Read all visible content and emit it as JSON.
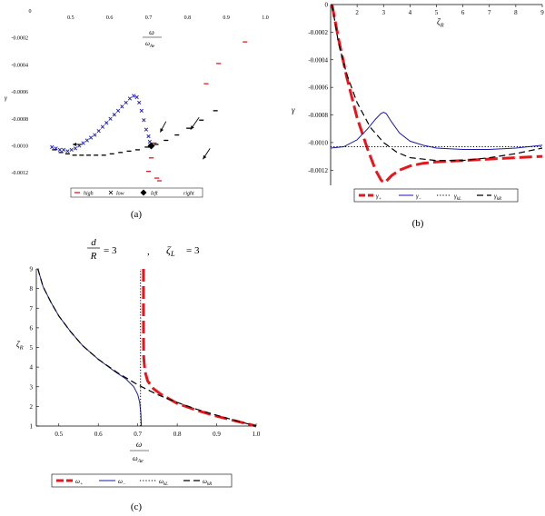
{
  "captions": {
    "a": "(a)",
    "b": "(b)",
    "c": "(c)"
  },
  "colors": {
    "red": "#e8161b",
    "blue": "#1a1aa8",
    "black": "#000000"
  },
  "chart_data": [
    {
      "id": "a",
      "type": "scatter",
      "xlabel_num": "ω",
      "xlabel_den": "ω",
      "xlabel_den_sub": "Ae",
      "ylabel": "γ",
      "x_ticks": [
        "0.5",
        "0.6",
        "0.7",
        "0.8",
        "0.9",
        "1.0"
      ],
      "x_tick_values": [
        0.5,
        0.6,
        0.7,
        0.8,
        0.9,
        1.0
      ],
      "y_ticks": [
        "-0.0002",
        "-0.0004",
        "-0.0006",
        "-0.0008",
        "-0.0010",
        "-0.0012"
      ],
      "y_tick_values": [
        -0.0002,
        -0.0004,
        -0.0006,
        -0.0008,
        -0.001,
        -0.0012
      ],
      "xlim": [
        0.4,
        1.0
      ],
      "ylim": [
        -0.00128,
        0
      ],
      "legend": [
        "high",
        "low",
        "left",
        "right"
      ],
      "series": [
        {
          "name": "high",
          "marker": "dash",
          "color": "#e8161b",
          "x": [
            0.948,
            0.88,
            0.848,
            0.715,
            0.707,
            0.7,
            0.721,
            0.728
          ],
          "y": [
            -0.00023,
            -0.00039,
            -0.00054,
            -0.00098,
            -0.00109,
            -0.00119,
            -0.00124,
            -0.00126
          ]
        },
        {
          "name": "low",
          "marker": "x",
          "color": "#1a1aa8",
          "x": [
            0.452,
            0.462,
            0.472,
            0.482,
            0.492,
            0.502,
            0.512,
            0.522,
            0.532,
            0.542,
            0.552,
            0.562,
            0.572,
            0.582,
            0.592,
            0.602,
            0.612,
            0.622,
            0.632,
            0.642,
            0.652,
            0.662,
            0.67,
            0.676,
            0.682,
            0.688,
            0.694,
            0.7,
            0.703,
            0.705
          ],
          "y": [
            -0.00101,
            -0.00102,
            -0.00103,
            -0.00103,
            -0.00104,
            -0.00103,
            -0.00102,
            -0.001,
            -0.00098,
            -0.00096,
            -0.00094,
            -0.00092,
            -0.00089,
            -0.00086,
            -0.00083,
            -0.0008,
            -0.00077,
            -0.00074,
            -0.00071,
            -0.00068,
            -0.00065,
            -0.00063,
            -0.00064,
            -0.00068,
            -0.00074,
            -0.00081,
            -0.00088,
            -0.00093,
            -0.00097,
            -0.001
          ]
        },
        {
          "name": "left",
          "marker": "diamond",
          "color": "#000000",
          "x": [
            0.707
          ],
          "y": [
            -0.001
          ]
        },
        {
          "name": "right",
          "marker": "dash",
          "color": "#000000",
          "x": [
            0.458,
            0.475,
            0.492,
            0.51,
            0.528,
            0.546,
            0.565,
            0.585,
            0.606,
            0.628,
            0.65,
            0.672,
            0.696,
            0.72,
            0.745,
            0.773,
            0.803,
            0.836,
            0.872
          ],
          "y": [
            -0.00103,
            -0.00105,
            -0.00106,
            -0.00107,
            -0.00107,
            -0.00107,
            -0.00107,
            -0.00107,
            -0.00106,
            -0.00105,
            -0.00104,
            -0.00103,
            -0.00101,
            -0.00099,
            -0.00096,
            -0.00092,
            -0.00087,
            -0.00081,
            -0.00074
          ]
        }
      ]
    },
    {
      "id": "b",
      "type": "line",
      "xlabel": "ζ",
      "xlabel_sub": "R",
      "ylabel": "γ",
      "x_ticks": [
        "1",
        "2",
        "3",
        "4",
        "5",
        "6",
        "7",
        "8",
        "9"
      ],
      "x_tick_values": [
        1,
        2,
        3,
        4,
        5,
        6,
        7,
        8,
        9
      ],
      "y_ticks": [
        "0",
        "-0.0002",
        "-0.0004",
        "-0.0006",
        "-0.0008",
        "-0.0010",
        "-0.0012"
      ],
      "y_tick_values": [
        0,
        -0.0002,
        -0.0004,
        -0.0006,
        -0.0008,
        -0.001,
        -0.0012
      ],
      "xlim": [
        1,
        9
      ],
      "ylim": [
        -0.00131,
        0
      ],
      "legend": [
        {
          "sym": "γ",
          "sub": "+"
        },
        {
          "sym": "γ",
          "sub": "−"
        },
        {
          "sym": "γ",
          "sub": "kL"
        },
        {
          "sym": "γ",
          "sub": "kR"
        }
      ],
      "series": [
        {
          "name": "γ+",
          "style": "longdash",
          "color": "#e8161b",
          "x": [
            1.05,
            1.3,
            1.6,
            2.0,
            2.4,
            2.7,
            2.9,
            3.0,
            3.1,
            3.3,
            3.6,
            4.0,
            4.5,
            5.0,
            6.0,
            7.0,
            8.0,
            9.0
          ],
          "y": [
            0.0,
            -0.00025,
            -0.00052,
            -0.00082,
            -0.00105,
            -0.0012,
            -0.00127,
            -0.00129,
            -0.00128,
            -0.00124,
            -0.0012,
            -0.00117,
            -0.00115,
            -0.00114,
            -0.00113,
            -0.00112,
            -0.00111,
            -0.0011
          ]
        },
        {
          "name": "γ−",
          "style": "solid",
          "color": "#1a1aa8",
          "x": [
            1.0,
            1.5,
            2.0,
            2.4,
            2.7,
            2.9,
            3.0,
            3.1,
            3.3,
            3.6,
            4.0,
            4.5,
            5.0,
            6.0,
            7.0,
            8.0,
            9.0
          ],
          "y": [
            -0.00104,
            -0.00103,
            -0.00098,
            -0.0009,
            -0.00083,
            -0.00079,
            -0.00078,
            -0.00079,
            -0.00085,
            -0.00093,
            -0.00099,
            -0.00102,
            -0.00104,
            -0.00105,
            -0.00105,
            -0.00104,
            -0.00102
          ]
        },
        {
          "name": "γkL",
          "style": "dotted",
          "color": "#000000",
          "x": [
            1.0,
            9.0
          ],
          "y": [
            -0.00103,
            -0.00103
          ]
        },
        {
          "name": "γkR",
          "style": "dashed",
          "color": "#000000",
          "x": [
            1.05,
            1.3,
            1.6,
            2.0,
            2.5,
            3.0,
            3.5,
            4.0,
            5.0,
            6.0,
            7.0,
            8.0,
            9.0
          ],
          "y": [
            0.0,
            -0.00028,
            -0.0005,
            -0.00071,
            -0.00089,
            -0.001,
            -0.00107,
            -0.00111,
            -0.00113,
            -0.00113,
            -0.00111,
            -0.00108,
            -0.00104
          ]
        }
      ]
    },
    {
      "id": "c",
      "type": "line",
      "title": {
        "num": "d",
        "den": "R",
        "eq1": "= 3",
        "comma": ",",
        "zeta": "ζ",
        "zeta_sub": "L",
        "eq2": "= 3"
      },
      "xlabel_num": "ω",
      "xlabel_den": "ω",
      "xlabel_den_sub": "Ae",
      "ylabel": "ζ",
      "ylabel_sub": "R",
      "x_ticks": [
        "0.5",
        "0.6",
        "0.7",
        "0.8",
        "0.9",
        "1.0"
      ],
      "x_tick_values": [
        0.5,
        0.6,
        0.7,
        0.8,
        0.9,
        1.0
      ],
      "y_ticks": [
        "1",
        "2",
        "3",
        "4",
        "5",
        "6",
        "7",
        "8",
        "9"
      ],
      "y_tick_values": [
        1,
        2,
        3,
        4,
        5,
        6,
        7,
        8,
        9
      ],
      "xlim": [
        0.443,
        1.0
      ],
      "ylim": [
        1,
        9
      ],
      "legend": [
        {
          "sym": "ω",
          "sub": "+"
        },
        {
          "sym": "ω",
          "sub": "−"
        },
        {
          "sym": "ω",
          "sub": "kL"
        },
        {
          "sym": "ω",
          "sub": "kR"
        }
      ],
      "series": [
        {
          "name": "ω+",
          "style": "longdash",
          "color": "#e8161b",
          "x": [
            0.7143,
            0.7143,
            0.7145,
            0.715,
            0.718,
            0.725,
            0.74,
            0.76,
            0.8,
            0.85,
            0.9,
            0.95,
            1.0
          ],
          "y": [
            9.0,
            7.0,
            5.5,
            4.5,
            3.8,
            3.3,
            2.9,
            2.6,
            2.15,
            1.8,
            1.5,
            1.25,
            1.0
          ]
        },
        {
          "name": "ω−",
          "style": "solid",
          "color": "#1a1aa8",
          "x": [
            0.447,
            0.46,
            0.48,
            0.5,
            0.53,
            0.56,
            0.6,
            0.64,
            0.67,
            0.69,
            0.7,
            0.705,
            0.708,
            0.709
          ],
          "y": [
            9.0,
            8.1,
            7.3,
            6.6,
            5.8,
            5.1,
            4.4,
            3.8,
            3.4,
            3.0,
            2.6,
            2.2,
            1.6,
            1.0
          ]
        },
        {
          "name": "ωkL",
          "style": "dotted",
          "color": "#000000",
          "x": [
            0.7071,
            0.7071
          ],
          "y": [
            1.0,
            9.0
          ]
        },
        {
          "name": "ωkR",
          "style": "dashed",
          "color": "#000000",
          "x": [
            0.447,
            0.46,
            0.48,
            0.5,
            0.53,
            0.56,
            0.6,
            0.65,
            0.7,
            0.75,
            0.8,
            0.85,
            0.9,
            0.95,
            1.0
          ],
          "y": [
            9.0,
            8.1,
            7.3,
            6.6,
            5.8,
            5.1,
            4.4,
            3.7,
            3.1,
            2.6,
            2.2,
            1.85,
            1.55,
            1.27,
            1.0
          ]
        }
      ]
    }
  ]
}
